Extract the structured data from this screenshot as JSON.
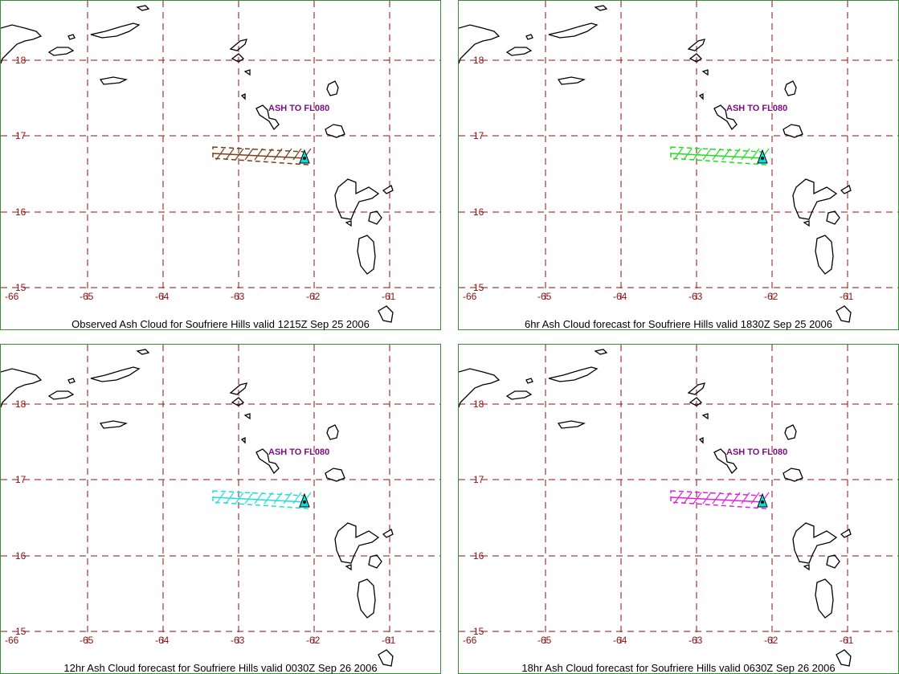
{
  "colors": {
    "grid": "#8b1010",
    "border": "#3a8a3a",
    "label": "#7a1080",
    "volcano": "#00e0e0"
  },
  "map": {
    "x_ticks": [
      "-66",
      "-65",
      "-64",
      "-63",
      "-62",
      "-61"
    ],
    "y_ticks": [
      "18",
      "17",
      "16",
      "15"
    ],
    "volcano_icon": "volcano-triangle-icon"
  },
  "panels": [
    {
      "label": "ASH TO FL080",
      "caption": "Observed Ash Cloud for Soufriere  Hills valid 1215Z Sep 25 2006",
      "cloud_color": "#7a3e1a"
    },
    {
      "label": "ASH TO FL080",
      "caption": "6hr Ash Cloud forecast for Soufriere  Hills valid 1830Z Sep 25 2006",
      "cloud_color": "#22dd22"
    },
    {
      "label": "ASH TO FL080",
      "caption": "12hr Ash Cloud forecast for Soufriere  Hills valid 0030Z Sep 26 2006",
      "cloud_color": "#22dddd"
    },
    {
      "label": "ASH TO FL080",
      "caption": "18hr Ash Cloud forecast for Soufriere  Hills valid 0630Z Sep 26 2006",
      "cloud_color": "#dd22dd"
    }
  ]
}
